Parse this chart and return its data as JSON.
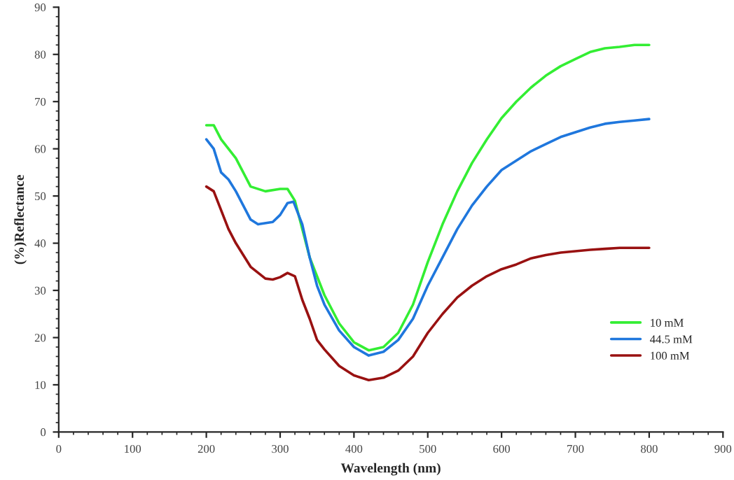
{
  "chart_data": {
    "type": "line",
    "xlabel": "Wavelength (nm)",
    "ylabel": "(%)Reflectance",
    "xlim": [
      0,
      900
    ],
    "ylim": [
      0,
      90
    ],
    "xticks": [
      0,
      100,
      200,
      300,
      400,
      500,
      600,
      700,
      800,
      900
    ],
    "yticks": [
      0,
      10,
      20,
      30,
      40,
      50,
      60,
      70,
      80,
      90
    ],
    "grid": false,
    "legend": "bottom right",
    "marker": "none",
    "line_style": "solid",
    "series": [
      {
        "name": "10 mM",
        "color": "#33ee33",
        "x": [
          200,
          210,
          220,
          240,
          260,
          280,
          300,
          310,
          320,
          340,
          360,
          380,
          400,
          420,
          440,
          460,
          480,
          500,
          520,
          540,
          560,
          580,
          600,
          620,
          640,
          660,
          680,
          700,
          720,
          740,
          760,
          780,
          800
        ],
        "values": [
          65,
          65,
          62,
          58,
          52,
          51,
          51.5,
          51.5,
          49,
          37,
          29,
          23,
          19,
          17.3,
          18,
          21,
          27,
          36,
          44,
          51,
          57,
          62,
          66.5,
          70,
          73,
          75.5,
          77.5,
          79,
          80.5,
          81.3,
          81.6,
          82,
          82
        ]
      },
      {
        "name": "44.5 mM",
        "color": "#1f77dd",
        "x": [
          200,
          210,
          220,
          230,
          240,
          260,
          270,
          290,
          300,
          310,
          318,
          330,
          340,
          350,
          360,
          380,
          400,
          420,
          440,
          460,
          480,
          500,
          520,
          540,
          560,
          580,
          600,
          620,
          640,
          660,
          680,
          700,
          720,
          740,
          760,
          780,
          800
        ],
        "values": [
          62,
          60,
          55,
          53.5,
          51,
          45,
          44,
          44.5,
          46,
          48.5,
          48.8,
          44,
          37,
          31,
          27,
          21.5,
          18,
          16.2,
          17,
          19.5,
          24,
          31,
          37,
          43,
          48,
          52,
          55.5,
          57.5,
          59.5,
          61,
          62.5,
          63.5,
          64.5,
          65.3,
          65.7,
          66,
          66.3
        ]
      },
      {
        "name": "100 mM",
        "color": "#991111",
        "x": [
          200,
          210,
          220,
          230,
          240,
          260,
          280,
          290,
          300,
          310,
          320,
          330,
          340,
          350,
          360,
          380,
          400,
          420,
          440,
          460,
          480,
          500,
          520,
          540,
          560,
          580,
          600,
          620,
          640,
          660,
          680,
          700,
          720,
          740,
          760,
          800
        ],
        "values": [
          52,
          51,
          47,
          43,
          40,
          35,
          32.5,
          32.3,
          32.8,
          33.7,
          33,
          28,
          24,
          19.5,
          17.5,
          14,
          12,
          11,
          11.5,
          13,
          16,
          21,
          25,
          28.5,
          31,
          33,
          34.5,
          35.5,
          36.8,
          37.5,
          38,
          38.3,
          38.6,
          38.8,
          39,
          39
        ]
      }
    ]
  }
}
